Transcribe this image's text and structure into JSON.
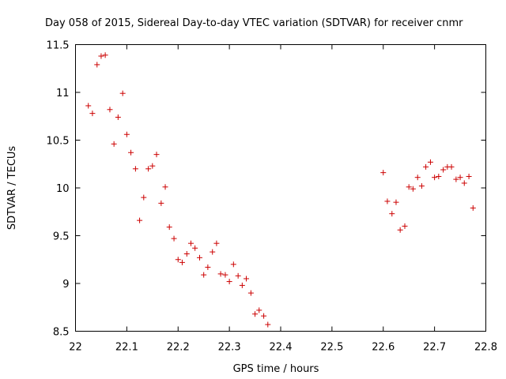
{
  "chart_data": {
    "type": "scatter",
    "title": "Day 058 of 2015, Sidereal Day-to-day VTEC variation (SDTVAR) for receiver cnmr",
    "xlabel": "GPS time / hours",
    "ylabel": "SDTVAR / TECUs",
    "xlim": [
      22,
      22.8
    ],
    "ylim": [
      8.5,
      11.5
    ],
    "xticks": [
      "22",
      "22.1",
      "22.2",
      "22.3",
      "22.4",
      "22.5",
      "22.6",
      "22.7",
      "22.8"
    ],
    "yticks": [
      "8.5",
      "9",
      "9.5",
      "10",
      "10.5",
      "11",
      "11.5"
    ],
    "grid": false,
    "marker": "+",
    "color": "#cc0000",
    "series": [
      {
        "name": "SDTVAR",
        "points": [
          [
            22.025,
            10.86
          ],
          [
            22.033,
            10.78
          ],
          [
            22.042,
            11.29
          ],
          [
            22.05,
            11.38
          ],
          [
            22.058,
            11.39
          ],
          [
            22.067,
            10.82
          ],
          [
            22.075,
            10.46
          ],
          [
            22.083,
            10.74
          ],
          [
            22.092,
            10.99
          ],
          [
            22.1,
            10.56
          ],
          [
            22.108,
            10.37
          ],
          [
            22.117,
            10.2
          ],
          [
            22.125,
            9.66
          ],
          [
            22.133,
            9.9
          ],
          [
            22.142,
            10.2
          ],
          [
            22.15,
            10.23
          ],
          [
            22.158,
            10.35
          ],
          [
            22.167,
            9.84
          ],
          [
            22.175,
            10.01
          ],
          [
            22.183,
            9.59
          ],
          [
            22.192,
            9.47
          ],
          [
            22.2,
            9.25
          ],
          [
            22.208,
            9.22
          ],
          [
            22.217,
            9.31
          ],
          [
            22.225,
            9.42
          ],
          [
            22.233,
            9.37
          ],
          [
            22.242,
            9.27
          ],
          [
            22.25,
            9.09
          ],
          [
            22.258,
            9.17
          ],
          [
            22.267,
            9.33
          ],
          [
            22.275,
            9.42
          ],
          [
            22.283,
            9.1
          ],
          [
            22.292,
            9.09
          ],
          [
            22.3,
            9.02
          ],
          [
            22.308,
            9.2
          ],
          [
            22.317,
            9.08
          ],
          [
            22.325,
            8.98
          ],
          [
            22.333,
            9.05
          ],
          [
            22.342,
            8.9
          ],
          [
            22.35,
            8.68
          ],
          [
            22.358,
            8.72
          ],
          [
            22.367,
            8.66
          ],
          [
            22.375,
            8.57
          ],
          [
            22.6,
            10.16
          ],
          [
            22.608,
            9.86
          ],
          [
            22.617,
            9.73
          ],
          [
            22.625,
            9.85
          ],
          [
            22.633,
            9.56
          ],
          [
            22.642,
            9.6
          ],
          [
            22.65,
            10.01
          ],
          [
            22.658,
            9.99
          ],
          [
            22.667,
            10.11
          ],
          [
            22.675,
            10.02
          ],
          [
            22.683,
            10.22
          ],
          [
            22.692,
            10.27
          ],
          [
            22.7,
            10.11
          ],
          [
            22.708,
            10.12
          ],
          [
            22.717,
            10.19
          ],
          [
            22.725,
            10.22
          ],
          [
            22.733,
            10.22
          ],
          [
            22.742,
            10.09
          ],
          [
            22.75,
            10.11
          ],
          [
            22.758,
            10.05
          ],
          [
            22.767,
            10.12
          ],
          [
            22.775,
            9.79
          ]
        ]
      }
    ]
  }
}
